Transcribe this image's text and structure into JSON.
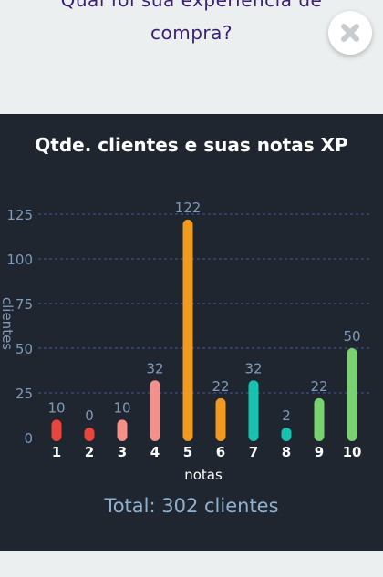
{
  "question": {
    "line1": "Qual foi sua experiência de",
    "line2": "compra?"
  },
  "close_button": {
    "icon": "close-icon"
  },
  "colors": {
    "page_background": "#eceff0",
    "panel_background": "#1f2630",
    "question_text": "#3b1f72",
    "total_text": "#8fb1cf",
    "tick_text": "#7f9bb8",
    "grid": "#4a5a8a"
  },
  "chart_data": {
    "type": "bar",
    "title": "Qtde. clientes e suas notas XP",
    "xlabel": "notas",
    "ylabel": "clientes",
    "categories": [
      "1",
      "2",
      "3",
      "4",
      "5",
      "6",
      "7",
      "8",
      "9",
      "10"
    ],
    "values": [
      10,
      0,
      10,
      32,
      122,
      22,
      32,
      2,
      22,
      50
    ],
    "bar_colors": [
      "#e8453c",
      "#e8453c",
      "#f4908a",
      "#f4908a",
      "#f29a1f",
      "#f29a1f",
      "#17c2b0",
      "#17c2b0",
      "#79d16f",
      "#79d16f"
    ],
    "yticks": [
      0,
      25,
      50,
      75,
      100,
      125
    ],
    "ylim": [
      0,
      125
    ],
    "grid": true,
    "data_labels": true
  },
  "total_text": "Total: 302 clientes"
}
